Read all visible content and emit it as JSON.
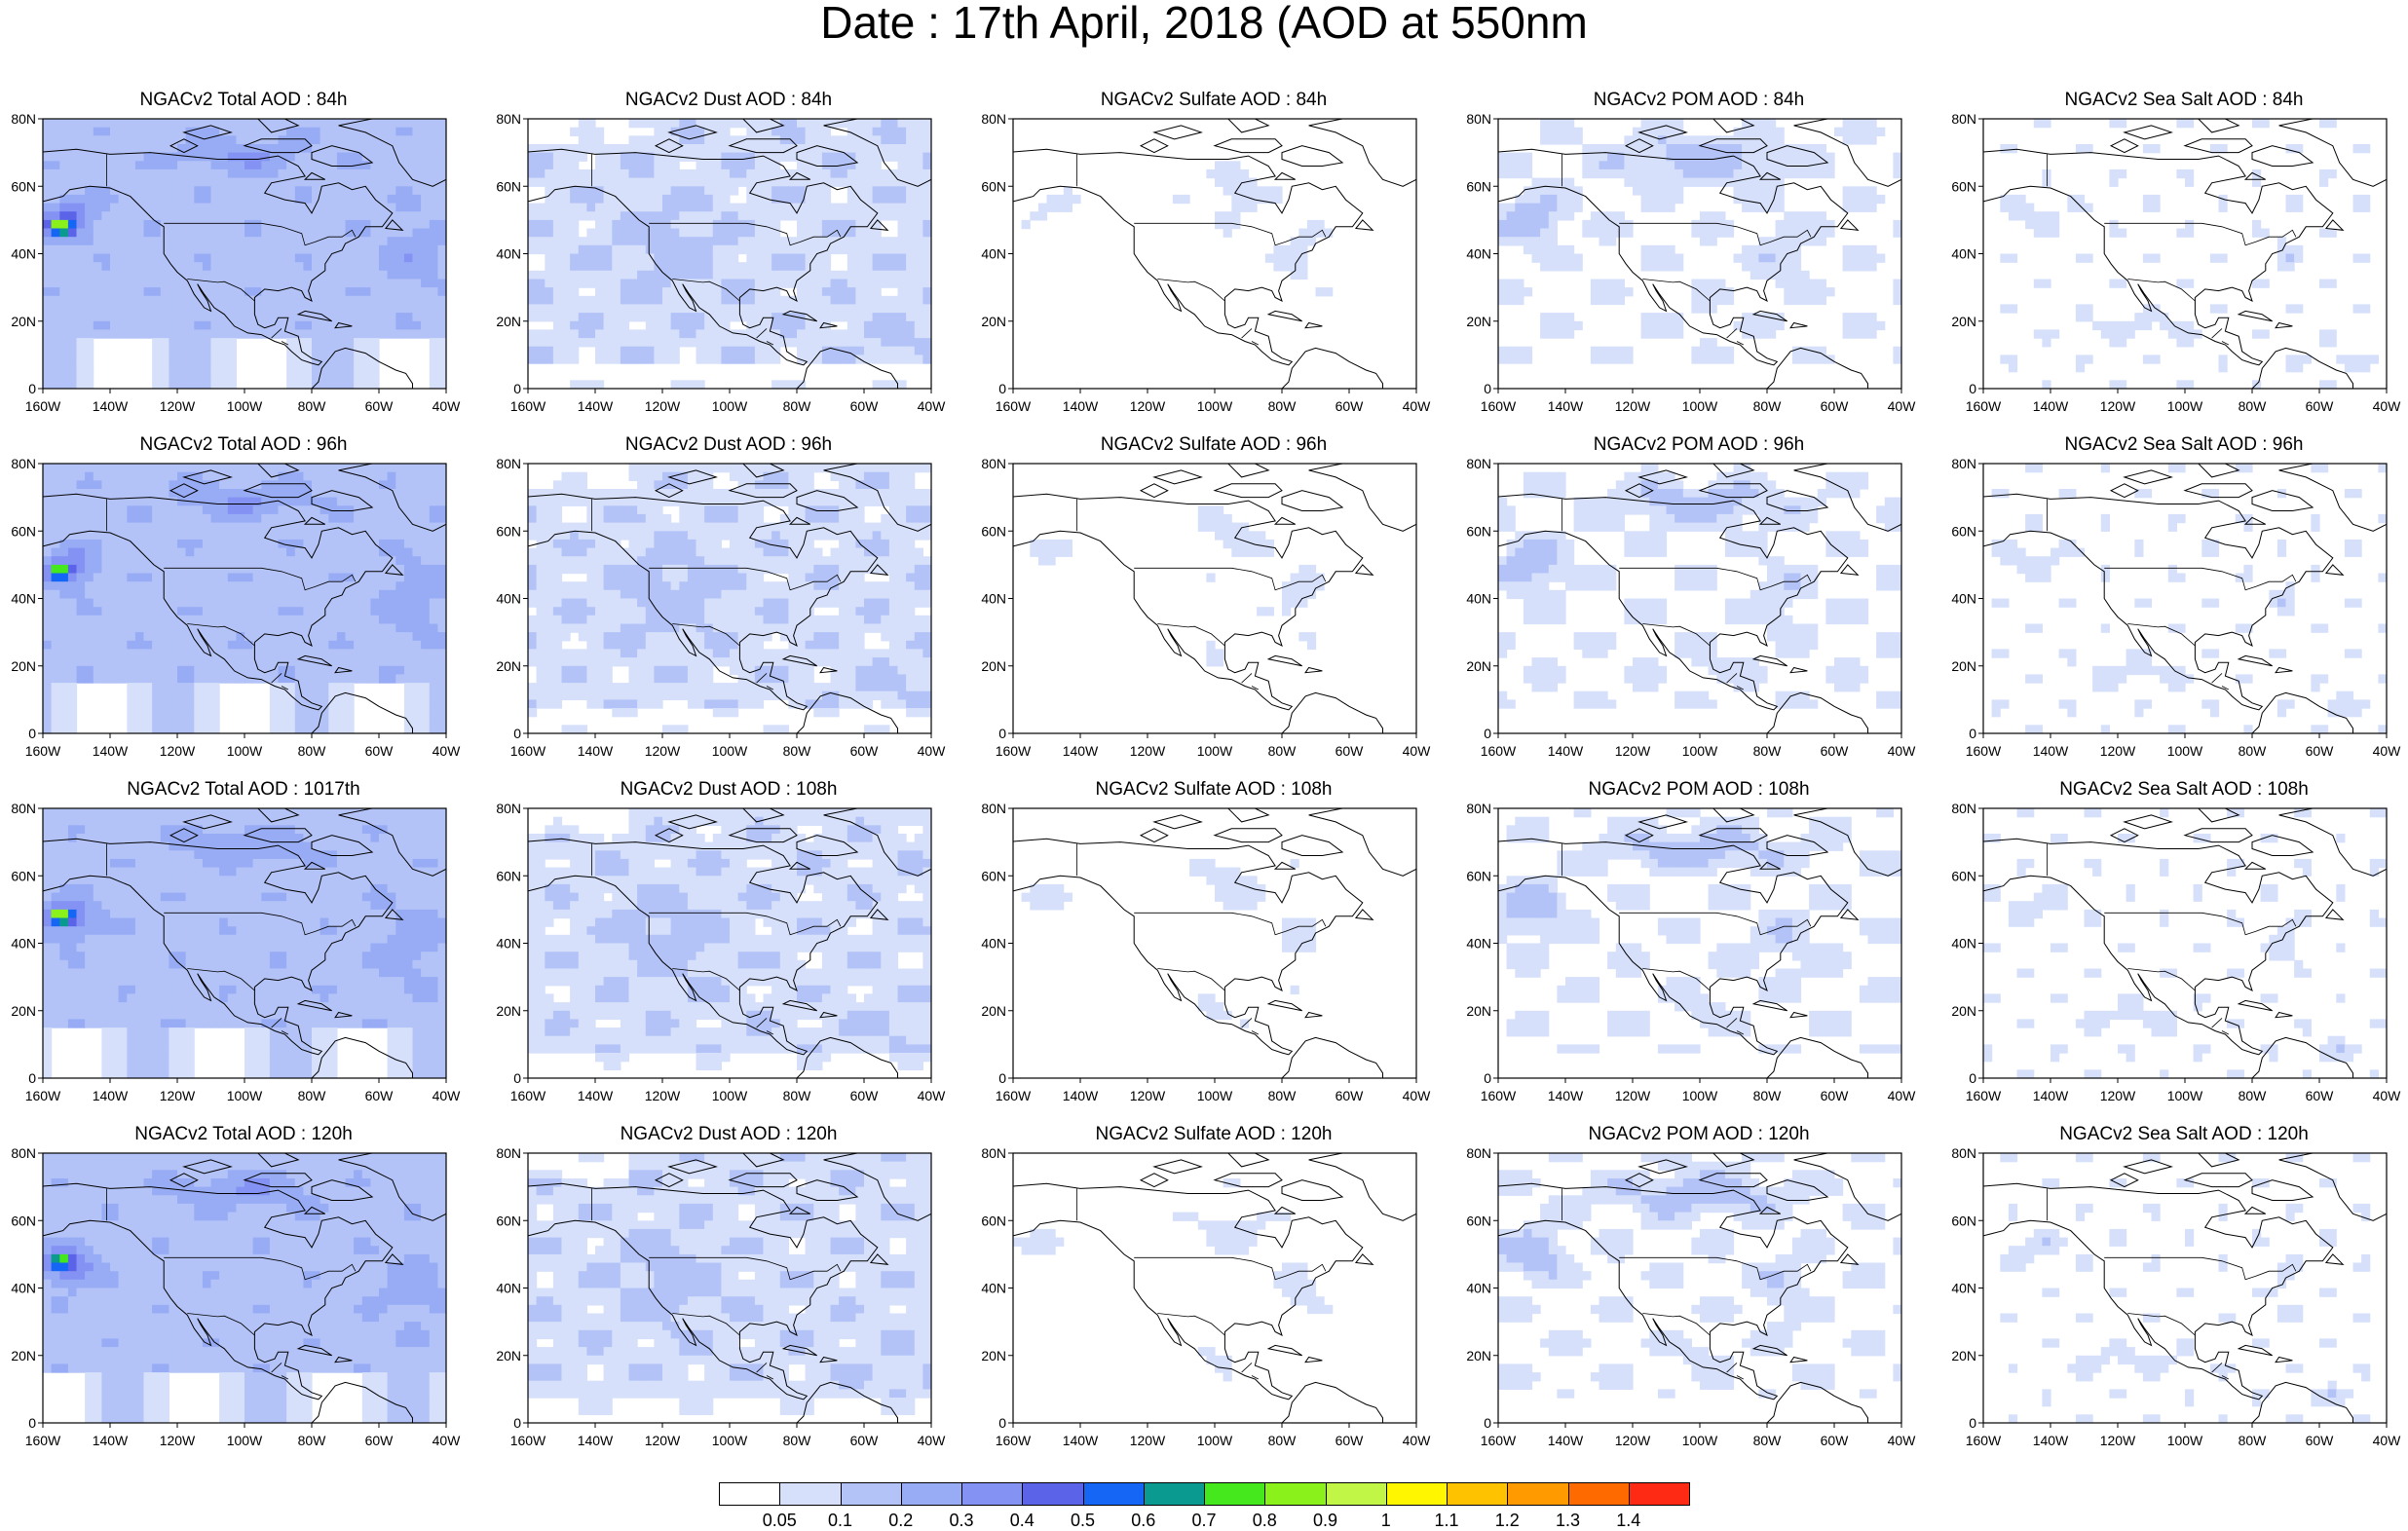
{
  "title": "Date : 17th April, 2018 (AOD at 550nm",
  "panels": [
    [
      {
        "title": "NGACv2 Total AOD : 84h",
        "species": "total"
      },
      {
        "title": "NGACv2 Dust AOD : 84h",
        "species": "dust"
      },
      {
        "title": "NGACv2 Sulfate AOD : 84h",
        "species": "sulfate"
      },
      {
        "title": "NGACv2 POM AOD : 84h",
        "species": "pom"
      },
      {
        "title": "NGACv2 Sea Salt AOD : 84h",
        "species": "seasalt"
      }
    ],
    [
      {
        "title": "NGACv2 Total AOD : 96h",
        "species": "total"
      },
      {
        "title": "NGACv2 Dust AOD : 96h",
        "species": "dust"
      },
      {
        "title": "NGACv2 Sulfate AOD : 96h",
        "species": "sulfate"
      },
      {
        "title": "NGACv2 POM AOD : 96h",
        "species": "pom"
      },
      {
        "title": "NGACv2 Sea Salt AOD : 96h",
        "species": "seasalt"
      }
    ],
    [
      {
        "title": "NGACv2 Total AOD : 1017th",
        "species": "total"
      },
      {
        "title": "NGACv2 Dust AOD : 108h",
        "species": "dust"
      },
      {
        "title": "NGACv2 Sulfate AOD : 108h",
        "species": "sulfate"
      },
      {
        "title": "NGACv2 POM AOD : 108h",
        "species": "pom"
      },
      {
        "title": "NGACv2 Sea Salt AOD : 108h",
        "species": "seasalt"
      }
    ],
    [
      {
        "title": "NGACv2 Total AOD : 120h",
        "species": "total"
      },
      {
        "title": "NGACv2 Dust AOD : 120h",
        "species": "dust"
      },
      {
        "title": "NGACv2 Sulfate AOD : 120h",
        "species": "sulfate"
      },
      {
        "title": "NGACv2 POM AOD : 120h",
        "species": "pom"
      },
      {
        "title": "NGACv2 Sea Salt  AOD : 120h",
        "species": "seasalt"
      }
    ]
  ],
  "axes": {
    "lat_ticks": [
      "80N",
      "60N",
      "40N",
      "20N",
      "0"
    ],
    "lon_ticks": [
      "160W",
      "140W",
      "120W",
      "100W",
      "80W",
      "60W",
      "40W"
    ]
  },
  "colorbar": {
    "labels": [
      "0.05",
      "0.1",
      "0.2",
      "0.3",
      "0.4",
      "0.5",
      "0.6",
      "0.7",
      "0.8",
      "0.9",
      "1",
      "1.1",
      "1.2",
      "1.3",
      "1.4"
    ],
    "colors": [
      "#ffffff",
      "#d6e0fb",
      "#b4c3f7",
      "#98acf5",
      "#8492f3",
      "#5b63e8",
      "#1666f5",
      "#0b9a90",
      "#44e81c",
      "#8af21a",
      "#c2f646",
      "#fff600",
      "#ffc200",
      "#ff9a00",
      "#ff6a00",
      "#ff2a14"
    ]
  }
}
